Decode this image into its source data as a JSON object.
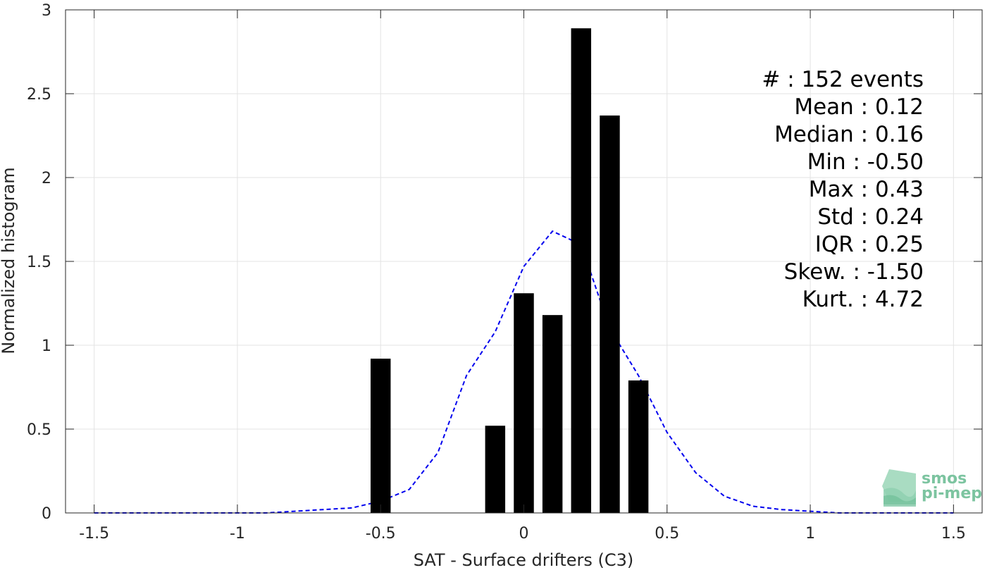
{
  "chart_data": {
    "type": "bar",
    "xlabel": "SAT - Surface drifters (C3)",
    "ylabel": "Normalized histogram",
    "xlim": [
      -1.6,
      1.6
    ],
    "ylim": [
      0,
      3
    ],
    "xticks": [
      -1.5,
      -1,
      -0.5,
      0,
      0.5,
      1,
      1.5
    ],
    "xtick_labels": [
      "-1.5",
      "-1",
      "-0.5",
      "0",
      "0.5",
      "1",
      "1.5"
    ],
    "yticks": [
      0,
      0.5,
      1,
      1.5,
      2,
      2.5,
      3
    ],
    "ytick_labels": [
      "0",
      "0.5",
      "1",
      "1.5",
      "2",
      "2.5",
      "3"
    ],
    "grid": true,
    "bar_color": "#000000",
    "bar_width": 0.07,
    "bars": [
      {
        "x": -0.5,
        "y": 0.92
      },
      {
        "x": -0.1,
        "y": 0.52
      },
      {
        "x": 0.0,
        "y": 1.31
      },
      {
        "x": 0.1,
        "y": 1.18
      },
      {
        "x": 0.2,
        "y": 2.89
      },
      {
        "x": 0.3,
        "y": 2.37
      },
      {
        "x": 0.4,
        "y": 0.79
      }
    ],
    "fit_curve": {
      "style": "dashed",
      "color": "#0000ee",
      "x": [
        -1.5,
        -1.4,
        -1.3,
        -1.2,
        -1.1,
        -1.0,
        -0.9,
        -0.8,
        -0.7,
        -0.6,
        -0.5,
        -0.4,
        -0.3,
        -0.2,
        -0.1,
        0.0,
        0.1,
        0.2,
        0.3,
        0.4,
        0.5,
        0.6,
        0.7,
        0.8,
        0.9,
        1.0,
        1.1,
        1.2,
        1.3,
        1.4,
        1.5
      ],
      "y": [
        0,
        0,
        0,
        0,
        0,
        0,
        0,
        0.01,
        0.02,
        0.03,
        0.07,
        0.14,
        0.36,
        0.82,
        1.08,
        1.47,
        1.68,
        1.6,
        1.1,
        0.82,
        0.48,
        0.24,
        0.1,
        0.04,
        0.02,
        0.01,
        0,
        0,
        0,
        0,
        0
      ]
    },
    "stats": [
      {
        "text": "#  : 152 events"
      },
      {
        "text": "Mean : 0.12"
      },
      {
        "text": "Median : 0.16"
      },
      {
        "text": "Min : -0.50"
      },
      {
        "text": "Max : 0.43"
      },
      {
        "text": "Std : 0.24"
      },
      {
        "text": "IQR : 0.25"
      },
      {
        "text": "Skew. : -1.50"
      },
      {
        "text": "Kurt. : 4.72"
      }
    ]
  },
  "logo": {
    "line1": "smos",
    "line2": "pi-mep",
    "color": "#7cc4a0"
  }
}
